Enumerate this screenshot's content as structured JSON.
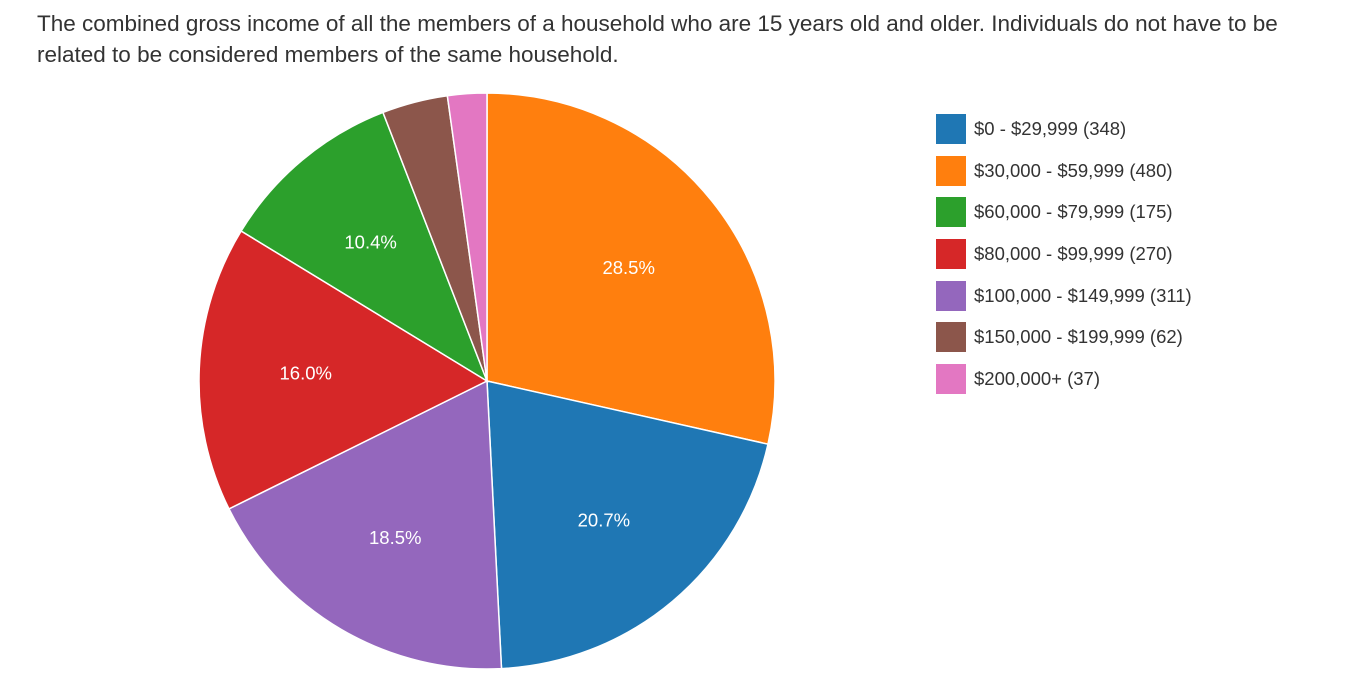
{
  "description": "The combined gross income of all the members of a household who are 15 years old and older. Individuals do not have to be related to be considered members of the same household.",
  "chart_data": {
    "type": "pie",
    "categories": [
      "$0 - $29,999",
      "$30,000 - $59,999",
      "$60,000 - $79,999",
      "$80,000 - $99,999",
      "$100,000 - $149,999",
      "$150,000 - $199,999",
      "$200,000+"
    ],
    "values": [
      348,
      480,
      175,
      270,
      311,
      62,
      37
    ],
    "legend_labels": [
      "$0 - $29,999 (348)",
      "$30,000 - $59,999 (480)",
      "$60,000 - $79,999 (175)",
      "$80,000 - $99,999 (270)",
      "$100,000 - $149,999 (311)",
      "$150,000 - $199,999 (62)",
      "$200,000+ (37)"
    ],
    "slice_labels": [
      "20.7%",
      "28.5%",
      "10.4%",
      "16.0%",
      "18.5%",
      "",
      ""
    ],
    "colors": [
      "#1f77b4",
      "#ff7f0e",
      "#2ca02c",
      "#d62728",
      "#9467bd",
      "#8c564b",
      "#e377c2"
    ],
    "slice_order": [
      1,
      0,
      4,
      3,
      2,
      5,
      6
    ],
    "start": "12 o'clock",
    "direction": "clockwise",
    "legend_position": "right"
  }
}
